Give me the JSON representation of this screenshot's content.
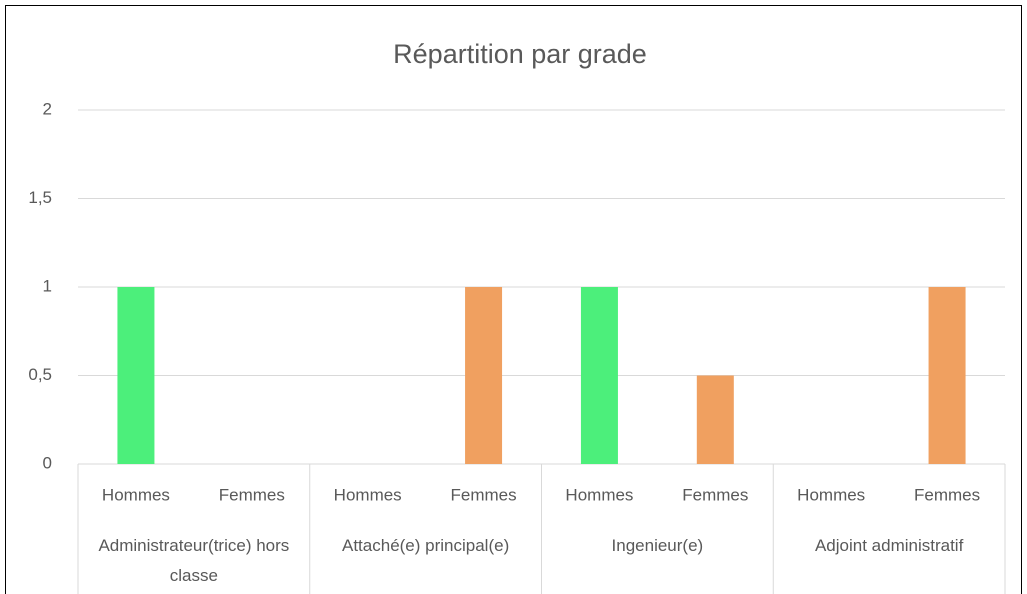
{
  "chart_data": {
    "type": "bar",
    "title": "Répartition par grade",
    "categories": [
      "Hommes",
      "Femmes",
      "Hommes",
      "Femmes",
      "Hommes",
      "Femmes",
      "Hommes",
      "Femmes"
    ],
    "groups": [
      "Administrateur(trice) hors classe",
      "Attaché(e) principal(e)",
      "Ingenieur(e)",
      "Adjoint administratif"
    ],
    "values": [
      1,
      0,
      0,
      1,
      1,
      0.5,
      0,
      1
    ],
    "colors": [
      "#4cef7b",
      "#f0a060",
      "#4cef7b",
      "#f0a060",
      "#4cef7b",
      "#f0a060",
      "#4cef7b",
      "#f0a060"
    ],
    "ylim": [
      0,
      2
    ],
    "yticks": [
      0,
      {
        "value": 0.5,
        "label": "0,5"
      },
      1,
      {
        "value": 1.5,
        "label": "1,5"
      },
      2
    ],
    "grid": true
  }
}
